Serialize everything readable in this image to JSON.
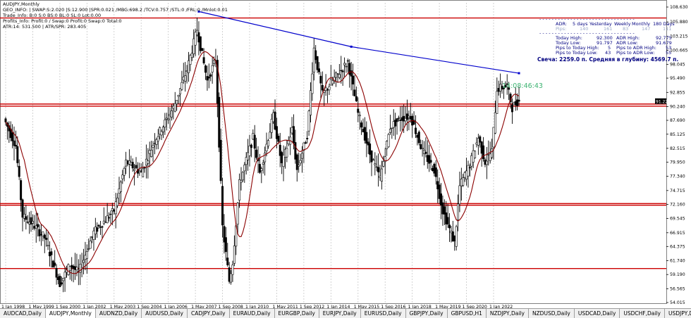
{
  "window": {
    "title": "AUDJPY,Monthly"
  },
  "info_lines": [
    "GEO_INFO: | SWAP:S:2.020 |S:12.900 |SPR:0.021 /MBG:698.2 /TCV:0.757 /STL:0 /FRL:0 /Mnlot:0.01",
    "Trade_Info: B:0 S:0 BS:0 BL:0 SL:0 Lot:0.00",
    "Profits_Info: Profit:0 / Swap:0 Profit:0 Swap:0 Total:0",
    "ATR:14: 531.500 | ATR/SPR: 283.405"
  ],
  "indicator": {
    "header": [
      "ADR:",
      "5 days",
      "Yesterday",
      "Weekly",
      "Monthly",
      "180 Days"
    ],
    "pips": [
      "Pips:",
      "140",
      "161",
      "83",
      "147",
      "111"
    ],
    "rows": [
      [
        "Today High:",
        "92.300",
        "ADR High:",
        "92.775"
      ],
      [
        "Today Low:",
        "91.797",
        "ADR Low:",
        "91.679"
      ],
      [
        "Pips to Today High:",
        "5",
        "Pips to ADR High:",
        "53"
      ],
      [
        "Pips to Today Low:",
        "43",
        "Pips to ADR Low:",
        "55"
      ]
    ],
    "candle_line": "Свеча: 2259.0 п. Средняя в глубину: 4569.7 п.",
    "timer": "14:08:46:43"
  },
  "colors": {
    "level": "#cc0000",
    "trendline": "#0000cc",
    "ma": "#8b0000",
    "candle": "#000000",
    "grid": "#c8c8c8",
    "price_tag_bg": "#000000",
    "timer": "#3cb371"
  },
  "chart_data": {
    "type": "candlestick",
    "symbol": "AUDJPY",
    "timeframe": "Monthly",
    "y_ticks": [
      "108.630",
      "105.880",
      "103.215",
      "100.665",
      "98.045",
      "95.490",
      "92.855",
      "90.240",
      "87.690",
      "85.125",
      "82.515",
      "79.950",
      "77.340",
      "74.715",
      "72.160",
      "69.545",
      "66.915",
      "64.375",
      "61.740",
      "59.190",
      "56.565",
      "54.015"
    ],
    "ylim": [
      54.015,
      108.63
    ],
    "x_ticks": [
      "1 Jan 1998",
      "1 May 1999",
      "1 Sep 2000",
      "1 Jan 2002",
      "1 May 2003",
      "1 Sep 2004",
      "1 Jan 2006",
      "1 May 2007",
      "1 Sep 2008",
      "1 Jan 2010",
      "1 May 2011",
      "1 Sep 2012",
      "1 Jan 2014",
      "1 May 2015",
      "1 Sep 2016",
      "1 Jan 2018",
      "1 May 2019",
      "1 Sep 2020",
      "1 Jan 2022"
    ],
    "levels": [
      106.6,
      90.7,
      90.3,
      72.3,
      72.0,
      60.3
    ],
    "level_labels": [
      "",
      "91.228"
    ],
    "current_price": "91.228",
    "trendline": [
      [
        "2007-07",
        107.8
      ],
      [
        "2015-01",
        101.3
      ],
      [
        "2023-04",
        96.4
      ]
    ],
    "price_path": [
      [
        "1998-01",
        88.0
      ],
      [
        "1998-08",
        83.0
      ],
      [
        "1998-12",
        70.0
      ],
      [
        "1999-06",
        68.5
      ],
      [
        "2000-01",
        66.0
      ],
      [
        "2000-10",
        57.5
      ],
      [
        "2001-04",
        61.0
      ],
      [
        "2001-09",
        59.5
      ],
      [
        "2002-06",
        67.0
      ],
      [
        "2003-06",
        71.0
      ],
      [
        "2004-01",
        80.0
      ],
      [
        "2004-10",
        78.0
      ],
      [
        "2005-06",
        84.0
      ],
      [
        "2006-05",
        90.0
      ],
      [
        "2007-01",
        97.0
      ],
      [
        "2007-07",
        104.5
      ],
      [
        "2008-01",
        95.0
      ],
      [
        "2008-06",
        99.0
      ],
      [
        "2008-10",
        68.0
      ],
      [
        "2009-02",
        58.0
      ],
      [
        "2009-04",
        61.5
      ],
      [
        "2009-08",
        76.0
      ],
      [
        "2010-04",
        84.5
      ],
      [
        "2010-08",
        78.0
      ],
      [
        "2011-04",
        88.5
      ],
      [
        "2011-09",
        79.5
      ],
      [
        "2012-03",
        86.0
      ],
      [
        "2012-06",
        78.5
      ],
      [
        "2012-12",
        85.0
      ],
      [
        "2013-04",
        101.0
      ],
      [
        "2013-09",
        92.5
      ],
      [
        "2014-03",
        95.0
      ],
      [
        "2014-12",
        98.5
      ],
      [
        "2015-06",
        89.0
      ],
      [
        "2016-01",
        81.5
      ],
      [
        "2016-07",
        77.0
      ],
      [
        "2017-01",
        86.5
      ],
      [
        "2017-07",
        88.0
      ],
      [
        "2018-01",
        88.5
      ],
      [
        "2018-08",
        82.0
      ],
      [
        "2019-03",
        78.5
      ],
      [
        "2019-08",
        71.0
      ],
      [
        "2020-03",
        65.0
      ],
      [
        "2020-06",
        75.5
      ],
      [
        "2020-12",
        79.5
      ],
      [
        "2021-05",
        84.5
      ],
      [
        "2021-09",
        80.0
      ],
      [
        "2022-01",
        82.0
      ],
      [
        "2022-04",
        93.5
      ],
      [
        "2022-10",
        94.0
      ],
      [
        "2023-01",
        90.0
      ],
      [
        "2023-04",
        91.2
      ]
    ]
  },
  "tabs": [
    "AUDCAD,Daily",
    "AUDJPY,Monthly",
    "AUDNZD,Daily",
    "AUDUSD,Daily",
    "CADJPY,Daily",
    "EURAUD,Daily",
    "EURGBP,Daily",
    "EURJPY,Daily",
    "EURUSD,Daily",
    "GBPJPY,Daily",
    "GBPUSD,H1",
    "NZDJPY,Daily",
    "NZDUSD,Daily",
    "USDCAD,Daily",
    "USDCHF,Daily",
    "USDJPY,Daily",
    "XAUUSD,H1",
    "BI"
  ],
  "active_tab": "AUDJPY,Monthly"
}
